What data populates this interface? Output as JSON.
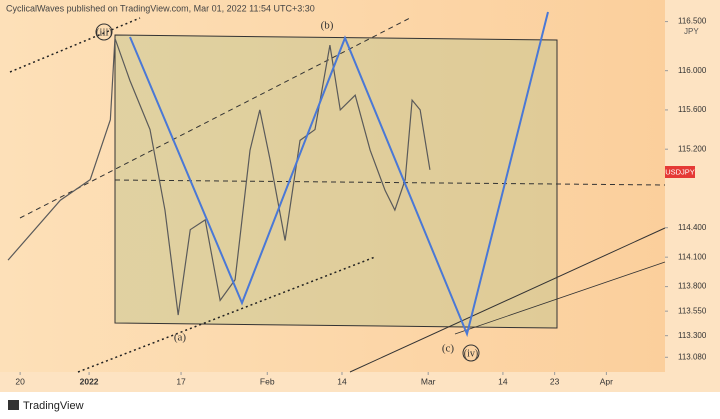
{
  "header": "CyclicalWaves published on TradingView.com, Mar 01, 2022 11:54 UTC+3:30",
  "footer": "TradingView",
  "chart_data": {
    "type": "line",
    "series": [
      {
        "name": "USDJPY",
        "color": "#5a5a5a",
        "x": [
          -2.1,
          7.0,
          12.2,
          15.7,
          16.5,
          19.1,
          22.6,
          25.2,
          27.5,
          29.6,
          32.2,
          34.8,
          37.4,
          40.0,
          41.7,
          43.5,
          46.1,
          48.7,
          51.3,
          53.9,
          55.7,
          58.3,
          60.9,
          63.5,
          65.2,
          67.0,
          68.2,
          69.6,
          71.3
        ],
        "values": [
          114.07,
          114.68,
          114.89,
          115.5,
          116.33,
          115.9,
          115.4,
          114.58,
          113.51,
          114.38,
          114.48,
          113.66,
          113.87,
          115.19,
          115.6,
          115.09,
          114.27,
          115.29,
          115.4,
          116.26,
          115.6,
          115.75,
          115.19,
          114.78,
          114.58,
          114.89,
          115.7,
          115.6,
          114.99
        ]
      }
    ],
    "y_axis_label": "JPY",
    "price_tag": "USDJPY",
    "ylim": [
      112.93,
      116.72
    ],
    "yticks": [
      {
        "value": 116.5,
        "label": "116.500"
      },
      {
        "value": 116,
        "label": "116.000"
      },
      {
        "value": 115.6,
        "label": "115.600"
      },
      {
        "value": 115.2,
        "label": "115.200"
      },
      {
        "value": 114.4,
        "label": "114.400"
      },
      {
        "value": 114.1,
        "label": "114.100"
      },
      {
        "value": 113.8,
        "label": "113.800"
      },
      {
        "value": 113.55,
        "label": "113.550"
      },
      {
        "value": 113.3,
        "label": "113.300"
      },
      {
        "value": 113.08,
        "label": "113.080"
      }
    ],
    "xlim": [
      -3.5,
      112.2
    ],
    "xticks": [
      {
        "value": 0,
        "label": "20"
      },
      {
        "value": 12,
        "label": "2022"
      },
      {
        "value": 28,
        "label": "17"
      },
      {
        "value": 43,
        "label": "Feb"
      },
      {
        "value": 56,
        "label": "14"
      },
      {
        "value": 71,
        "label": "Mar"
      },
      {
        "value": 84,
        "label": "14"
      },
      {
        "value": 93,
        "label": "23"
      },
      {
        "value": 102,
        "label": "Apr"
      }
    ],
    "annotations": [
      "(iii)",
      "(b)",
      "(a)",
      "(c)",
      "(iv)"
    ]
  }
}
